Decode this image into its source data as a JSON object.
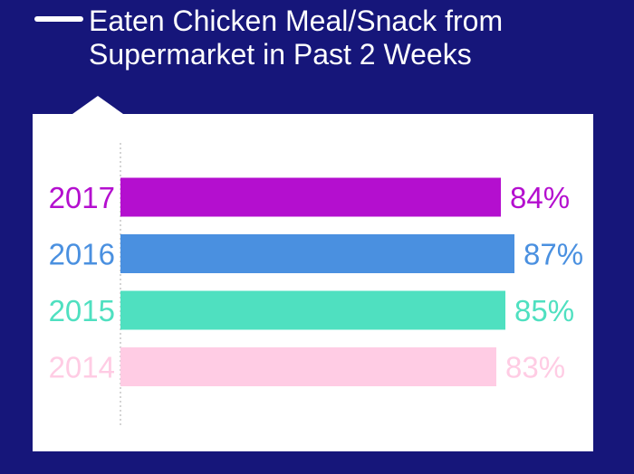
{
  "title": "Eaten Chicken Meal/Snack from Supermarket in Past 2 Weeks",
  "colors": {
    "background": "#16167a",
    "panel": "#ffffff"
  },
  "chart_data": {
    "type": "bar",
    "orientation": "horizontal",
    "categories": [
      "2017",
      "2016",
      "2015",
      "2014"
    ],
    "values": [
      84,
      87,
      85,
      83
    ],
    "value_labels": [
      "84%",
      "87%",
      "85%",
      "83%"
    ],
    "colors": [
      "#b40fcf",
      "#4a90e0",
      "#4fe0c0",
      "#ffcce4"
    ],
    "title": "Eaten Chicken Meal/Snack from Supermarket in Past 2 Weeks",
    "xlabel": "",
    "ylabel": "",
    "xlim": [
      0,
      100
    ],
    "grid": false
  }
}
